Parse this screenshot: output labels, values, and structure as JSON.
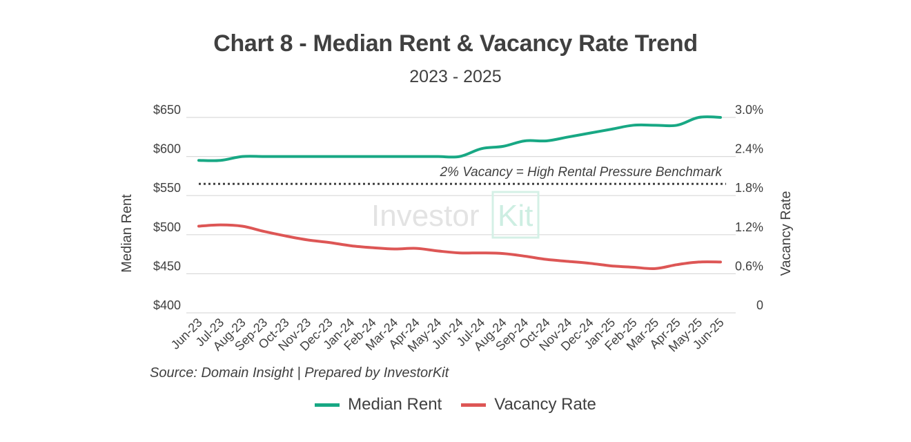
{
  "chart_data": {
    "type": "line",
    "title": "Chart 8 - Median Rent & Vacancy Rate Trend",
    "subtitle": "2023 - 2025",
    "categories": [
      "Jun-23",
      "Jul-23",
      "Aug-23",
      "Sep-23",
      "Oct-23",
      "Nov-23",
      "Dec-23",
      "Jan-24",
      "Feb-24",
      "Mar-24",
      "Apr-24",
      "May-24",
      "Jun-24",
      "Jul-24",
      "Aug-24",
      "Sep-24",
      "Oct-24",
      "Nov-24",
      "Dec-24",
      "Jan-25",
      "Feb-25",
      "Mar-25",
      "Apr-25",
      "May-25",
      "Jun-25"
    ],
    "ylabel_left": "Median Rent",
    "ylabel_right": "Vacancy Rate",
    "yticks_left": [
      "$650",
      "$600",
      "$550",
      "$500",
      "$450",
      "$400"
    ],
    "yticks_right": [
      "3.0%",
      "2.4%",
      "1.8%",
      "1.2%",
      "0.6%",
      "0"
    ],
    "ylim_left": [
      400,
      650
    ],
    "ylim_right": [
      0,
      3.0
    ],
    "grid": true,
    "legend_position": "bottom",
    "series": [
      {
        "name": "Median Rent",
        "axis": "left",
        "color": "#18a884",
        "values": [
          595,
          595,
          600,
          600,
          600,
          600,
          600,
          600,
          600,
          600,
          600,
          600,
          600,
          610,
          613,
          620,
          620,
          625,
          630,
          635,
          640,
          640,
          640,
          650,
          650
        ]
      },
      {
        "name": "Vacancy Rate",
        "axis": "right",
        "color": "#dd5655",
        "values": [
          1.33,
          1.35,
          1.33,
          1.25,
          1.18,
          1.12,
          1.08,
          1.03,
          1.0,
          0.98,
          0.99,
          0.95,
          0.92,
          0.92,
          0.91,
          0.87,
          0.82,
          0.79,
          0.76,
          0.72,
          0.7,
          0.68,
          0.74,
          0.78,
          0.78
        ]
      }
    ],
    "benchmark": {
      "value": 1.98,
      "axis": "right",
      "label": "2% Vacancy = High Rental Pressure Benchmark"
    },
    "watermark": "InvestorKit",
    "source": "Source: Domain Insight | Prepared by InvestorKit"
  }
}
